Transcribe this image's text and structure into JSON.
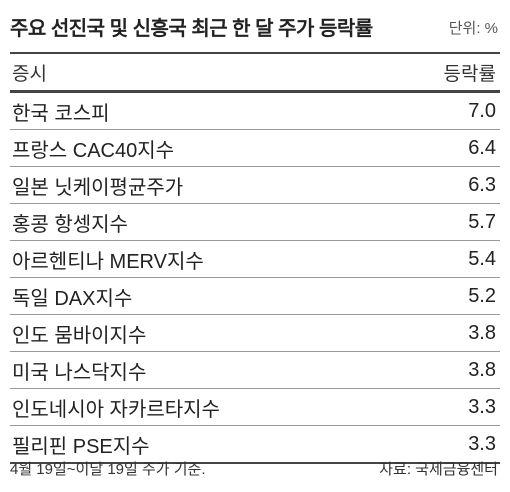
{
  "header": {
    "title": "주요 선진국 및 신흥국 최근 한 달 주가 등락률",
    "unit": "단위: %"
  },
  "table": {
    "columns": [
      "증시",
      "등락률"
    ],
    "rows": [
      [
        "한국 코스피",
        "7.0"
      ],
      [
        "프랑스 CAC40지수",
        "6.4"
      ],
      [
        "일본 닛케이평균주가",
        "6.3"
      ],
      [
        "홍콩 항셍지수",
        "5.7"
      ],
      [
        "아르헨티나 MERV지수",
        "5.4"
      ],
      [
        "독일 DAX지수",
        "5.2"
      ],
      [
        "인도 뭄바이지수",
        "3.8"
      ],
      [
        "미국 나스닥지수",
        "3.8"
      ],
      [
        "인도네시아 자카르타지수",
        "3.3"
      ],
      [
        "필리핀 PSE지수",
        "3.3"
      ]
    ]
  },
  "footer": {
    "note": "4월 19일~이달 19일 주가 기준.",
    "source": "자료: 국제금융센터"
  }
}
